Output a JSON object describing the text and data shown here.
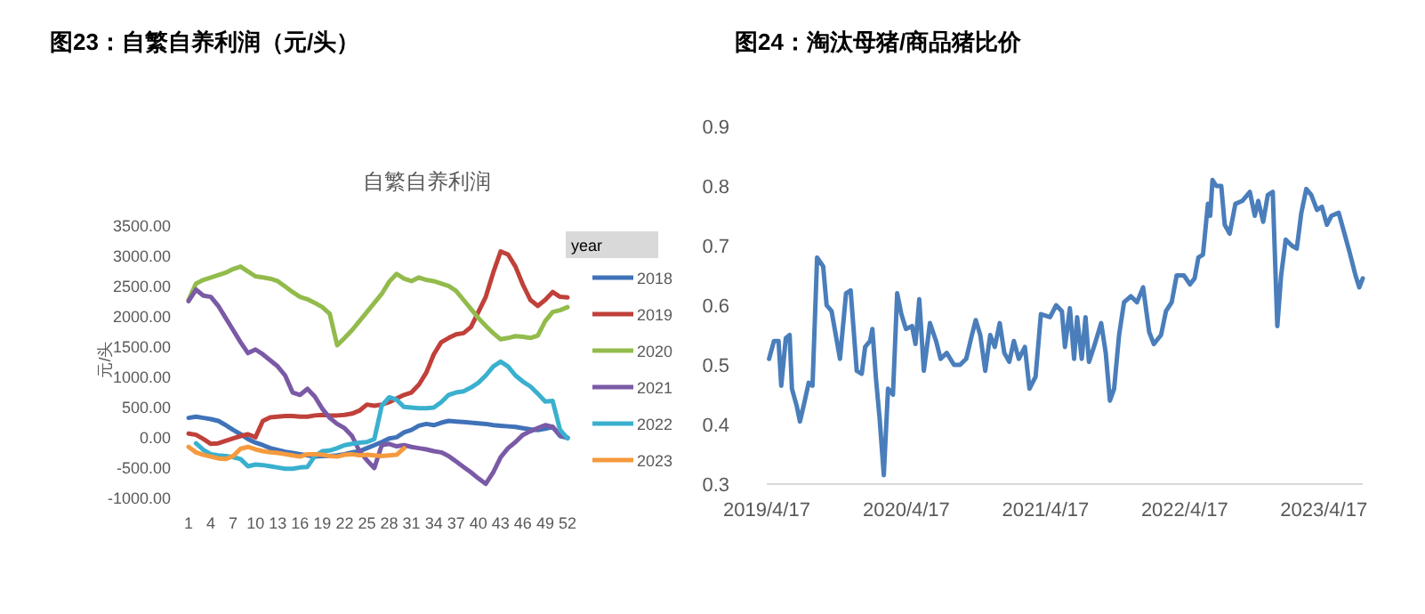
{
  "chart_data": [
    {
      "type": "line",
      "title": "图23：自繁自养利润（元/头）",
      "subtitle": "自繁自养利润",
      "ylabel": "元/头",
      "legend": "right",
      "legend_title": "year",
      "categories": [
        "1",
        null,
        null,
        "4",
        null,
        null,
        "7",
        null,
        null,
        "10",
        null,
        null,
        "13",
        null,
        null,
        "16",
        null,
        null,
        "19",
        null,
        null,
        "22",
        null,
        null,
        "25",
        null,
        null,
        "28",
        null,
        null,
        "31",
        null,
        null,
        "34",
        null,
        null,
        "37",
        null,
        null,
        "40",
        null,
        null,
        "43",
        null,
        null,
        "46",
        null,
        null,
        "49",
        null,
        null,
        "52"
      ],
      "ylim": [
        -1000,
        3500
      ],
      "yticks": [
        {
          "value": -1000,
          "label": "-1000.00"
        },
        {
          "value": -500,
          "label": "-500.00"
        },
        {
          "value": 0,
          "label": "0.00"
        },
        {
          "value": 500,
          "label": "500.00"
        },
        {
          "value": 1000,
          "label": "1000.00"
        },
        {
          "value": 1500,
          "label": "1500.00"
        },
        {
          "value": 2000,
          "label": "2000.00"
        },
        {
          "value": 2500,
          "label": "2500.00"
        },
        {
          "value": 3000,
          "label": "3000.00"
        },
        {
          "value": 3500,
          "label": "3500.00"
        }
      ],
      "series": [
        {
          "name": "2018",
          "color": "#3f72b8",
          "values": [
            300,
            320,
            300,
            280,
            250,
            180,
            100,
            30,
            -50,
            -110,
            -150,
            -200,
            -230,
            -260,
            -280,
            -300,
            -320,
            -340,
            -330,
            -330,
            -320,
            -300,
            -270,
            -250,
            -200,
            -150,
            -100,
            -40,
            -20,
            60,
            100,
            170,
            200,
            180,
            220,
            250,
            240,
            230,
            220,
            210,
            200,
            180,
            170,
            160,
            150,
            130,
            110,
            100,
            120,
            150,
            0,
            -30
          ]
        },
        {
          "name": "2019",
          "color": "#c0403a",
          "values": [
            40,
            20,
            -50,
            -130,
            -120,
            -80,
            -40,
            0,
            30,
            -20,
            250,
            310,
            320,
            330,
            330,
            320,
            320,
            340,
            350,
            340,
            340,
            350,
            370,
            420,
            520,
            500,
            520,
            560,
            620,
            680,
            720,
            850,
            1050,
            1350,
            1550,
            1620,
            1680,
            1700,
            1800,
            2050,
            2300,
            2700,
            3050,
            3000,
            2800,
            2500,
            2250,
            2150,
            2250,
            2380,
            2300,
            2290
          ]
        },
        {
          "name": "2020",
          "color": "#92bb4c",
          "values": [
            2250,
            2520,
            2580,
            2620,
            2660,
            2700,
            2760,
            2800,
            2720,
            2640,
            2620,
            2600,
            2560,
            2470,
            2380,
            2300,
            2260,
            2200,
            2130,
            2020,
            1500,
            1620,
            1750,
            1900,
            2050,
            2200,
            2350,
            2550,
            2680,
            2600,
            2560,
            2620,
            2580,
            2560,
            2520,
            2480,
            2400,
            2250,
            2100,
            1950,
            1820,
            1700,
            1600,
            1620,
            1650,
            1640,
            1620,
            1660,
            1900,
            2050,
            2080,
            2130
          ]
        },
        {
          "name": "2021",
          "color": "#7a5aa6",
          "values": [
            2230,
            2420,
            2320,
            2300,
            2150,
            1950,
            1750,
            1550,
            1370,
            1430,
            1350,
            1250,
            1150,
            1000,
            720,
            680,
            780,
            650,
            450,
            300,
            200,
            130,
            0,
            -250,
            -400,
            -530,
            -150,
            -130,
            -170,
            -150,
            -180,
            -200,
            -220,
            -250,
            -270,
            -330,
            -420,
            -510,
            -600,
            -700,
            -790,
            -600,
            -350,
            -200,
            -100,
            20,
            80,
            130,
            180,
            150,
            20,
            -30
          ]
        },
        {
          "name": "2022",
          "color": "#3ab0cf",
          "values": [
            null,
            -120,
            -230,
            -300,
            -320,
            -330,
            -350,
            -380,
            -500,
            -470,
            -480,
            -500,
            -520,
            -540,
            -540,
            -520,
            -510,
            -330,
            -250,
            -240,
            -200,
            -150,
            -130,
            -110,
            -100,
            -50,
            500,
            640,
            600,
            480,
            470,
            460,
            460,
            470,
            560,
            680,
            720,
            740,
            800,
            880,
            1000,
            1150,
            1230,
            1150,
            1000,
            900,
            820,
            700,
            570,
            580,
            100,
            -40
          ]
        },
        {
          "name": "2023",
          "color": "#f59a3e",
          "values": [
            -180,
            -270,
            -310,
            -340,
            -370,
            -380,
            -330,
            -210,
            -180,
            -220,
            -250,
            -270,
            -280,
            -300,
            -320,
            -340,
            -300,
            -300,
            -310,
            -330,
            -340,
            -310,
            -300,
            -320,
            -310,
            -320,
            -330,
            -320,
            -310,
            -200,
            null,
            null,
            null,
            null,
            null,
            null,
            null,
            null,
            null,
            null,
            null,
            null,
            null,
            null,
            null,
            null,
            null,
            null,
            null,
            null,
            null,
            null
          ]
        }
      ]
    },
    {
      "type": "line",
      "title": "图24：淘汰母猪/商品猪比价",
      "xlim": [
        "2019-04-17",
        "2023-07-28"
      ],
      "xticks": [
        {
          "value": "2019-04-17",
          "label": "2019/4/17"
        },
        {
          "value": "2020-04-17",
          "label": "2020/4/17"
        },
        {
          "value": "2021-04-17",
          "label": "2021/4/17"
        },
        {
          "value": "2022-04-17",
          "label": "2022/4/17"
        },
        {
          "value": "2023-04-17",
          "label": "2023/4/17"
        }
      ],
      "ylim": [
        0.3,
        0.9
      ],
      "yticks": [
        0.3,
        0.4,
        0.5,
        0.6,
        0.7,
        0.8,
        0.9
      ],
      "series": [
        {
          "color": "#4a7ebb",
          "x": [
            "2019-04-23",
            "2019-05-06",
            "2019-05-18",
            "2019-05-25",
            "2019-06-06",
            "2019-06-16",
            "2019-06-22",
            "2019-07-05",
            "2019-07-13",
            "2019-07-24",
            "2019-08-05",
            "2019-08-15",
            "2019-08-27",
            "2019-09-12",
            "2019-09-21",
            "2019-10-04",
            "2019-10-26",
            "2019-11-11",
            "2019-11-23",
            "2019-12-09",
            "2019-12-22",
            "2019-12-31",
            "2020-01-13",
            "2020-01-19",
            "2020-01-28",
            "2020-02-07",
            "2020-02-18",
            "2020-02-29",
            "2020-03-13",
            "2020-03-24",
            "2020-04-04",
            "2020-04-16",
            "2020-05-02",
            "2020-05-11",
            "2020-05-21",
            "2020-06-02",
            "2020-06-18",
            "2020-07-04",
            "2020-07-16",
            "2020-08-01",
            "2020-08-20",
            "2020-09-05",
            "2020-09-21",
            "2020-10-06",
            "2020-10-16",
            "2020-10-28",
            "2020-11-10",
            "2020-11-23",
            "2020-12-05",
            "2020-12-18",
            "2020-12-30",
            "2021-01-12",
            "2021-01-24",
            "2021-02-06",
            "2021-02-22",
            "2021-03-06",
            "2021-03-22",
            "2021-04-05",
            "2021-04-29",
            "2021-05-15",
            "2021-05-30",
            "2021-06-07",
            "2021-06-20",
            "2021-07-01",
            "2021-07-09",
            "2021-07-21",
            "2021-07-31",
            "2021-08-09",
            "2021-08-22",
            "2021-09-10",
            "2021-09-22",
            "2021-10-03",
            "2021-10-14",
            "2021-10-27",
            "2021-11-09",
            "2021-11-27",
            "2021-12-13",
            "2021-12-29",
            "2022-01-14",
            "2022-01-26",
            "2022-02-14",
            "2022-02-27",
            "2022-03-14",
            "2022-03-27",
            "2022-04-15",
            "2022-05-01",
            "2022-05-13",
            "2022-05-23",
            "2022-06-04",
            "2022-06-17",
            "2022-06-23",
            "2022-06-29",
            "2022-07-09",
            "2022-07-22",
            "2022-07-31",
            "2022-08-13",
            "2022-08-28",
            "2022-09-15",
            "2022-10-05",
            "2022-10-18",
            "2022-10-27",
            "2022-11-09",
            "2022-11-21",
            "2022-12-04",
            "2022-12-16",
            "2022-12-26",
            "2023-01-07",
            "2023-01-23",
            "2023-02-05",
            "2023-02-17",
            "2023-03-02",
            "2023-03-15",
            "2023-03-30",
            "2023-04-12",
            "2023-04-25",
            "2023-05-07",
            "2023-05-26",
            "2023-06-08",
            "2023-06-23",
            "2023-07-09",
            "2023-07-19",
            "2023-07-28"
          ],
          "values": [
            0.51,
            0.54,
            0.54,
            0.465,
            0.545,
            0.55,
            0.46,
            0.43,
            0.405,
            0.435,
            0.47,
            0.465,
            0.68,
            0.665,
            0.6,
            0.59,
            0.51,
            0.62,
            0.625,
            0.49,
            0.485,
            0.53,
            0.54,
            0.56,
            0.48,
            0.41,
            0.315,
            0.46,
            0.45,
            0.62,
            0.585,
            0.56,
            0.565,
            0.535,
            0.61,
            0.49,
            0.57,
            0.54,
            0.51,
            0.52,
            0.5,
            0.5,
            0.51,
            0.55,
            0.575,
            0.55,
            0.49,
            0.55,
            0.53,
            0.57,
            0.52,
            0.505,
            0.54,
            0.51,
            0.53,
            0.46,
            0.48,
            0.585,
            0.58,
            0.6,
            0.59,
            0.53,
            0.595,
            0.51,
            0.58,
            0.51,
            0.58,
            0.505,
            0.53,
            0.57,
            0.52,
            0.44,
            0.46,
            0.55,
            0.605,
            0.615,
            0.605,
            0.63,
            0.555,
            0.535,
            0.55,
            0.59,
            0.605,
            0.65,
            0.65,
            0.635,
            0.645,
            0.68,
            0.685,
            0.77,
            0.75,
            0.81,
            0.8,
            0.8,
            0.735,
            0.72,
            0.77,
            0.775,
            0.79,
            0.75,
            0.775,
            0.74,
            0.785,
            0.79,
            0.565,
            0.65,
            0.71,
            0.7,
            0.695,
            0.755,
            0.795,
            0.785,
            0.76,
            0.765,
            0.735,
            0.75,
            0.755,
            0.725,
            0.69,
            0.65,
            0.63,
            0.645
          ]
        }
      ]
    }
  ]
}
